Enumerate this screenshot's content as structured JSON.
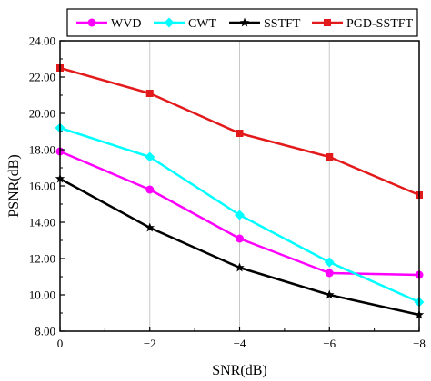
{
  "chart_data": {
    "type": "line",
    "xlabel": "SNR(dB)",
    "ylabel": "PSNR(dB)",
    "x": [
      0,
      -2,
      -4,
      -6,
      -8
    ],
    "x_tick_labels": [
      "0",
      "−2",
      "−4",
      "−6",
      "−8"
    ],
    "xlim": [
      0,
      -8
    ],
    "ylim": [
      8,
      24
    ],
    "y_ticks": [
      8,
      10,
      12,
      14,
      16,
      18,
      20,
      22,
      24
    ],
    "y_tick_labels": [
      "8.00",
      "10.00",
      "12.00",
      "14.00",
      "16.00",
      "18.00",
      "20.00",
      "22.00",
      "24.00"
    ],
    "grid": "vertical",
    "legend": "top",
    "series": [
      {
        "name": "WVD",
        "color": "#ff00ff",
        "marker": "circle",
        "values": [
          17.9,
          15.8,
          13.1,
          11.2,
          11.1
        ]
      },
      {
        "name": "CWT",
        "color": "#00ffff",
        "marker": "diamond",
        "values": [
          19.2,
          17.6,
          14.4,
          11.8,
          9.6
        ]
      },
      {
        "name": "SSTFT",
        "color": "#000000",
        "marker": "star",
        "values": [
          16.4,
          13.7,
          11.5,
          10.0,
          8.9
        ]
      },
      {
        "name": "PGD-SSTFT",
        "color": "#e31a1c",
        "marker": "square",
        "values": [
          22.5,
          21.1,
          18.9,
          17.6,
          15.5
        ]
      }
    ]
  }
}
